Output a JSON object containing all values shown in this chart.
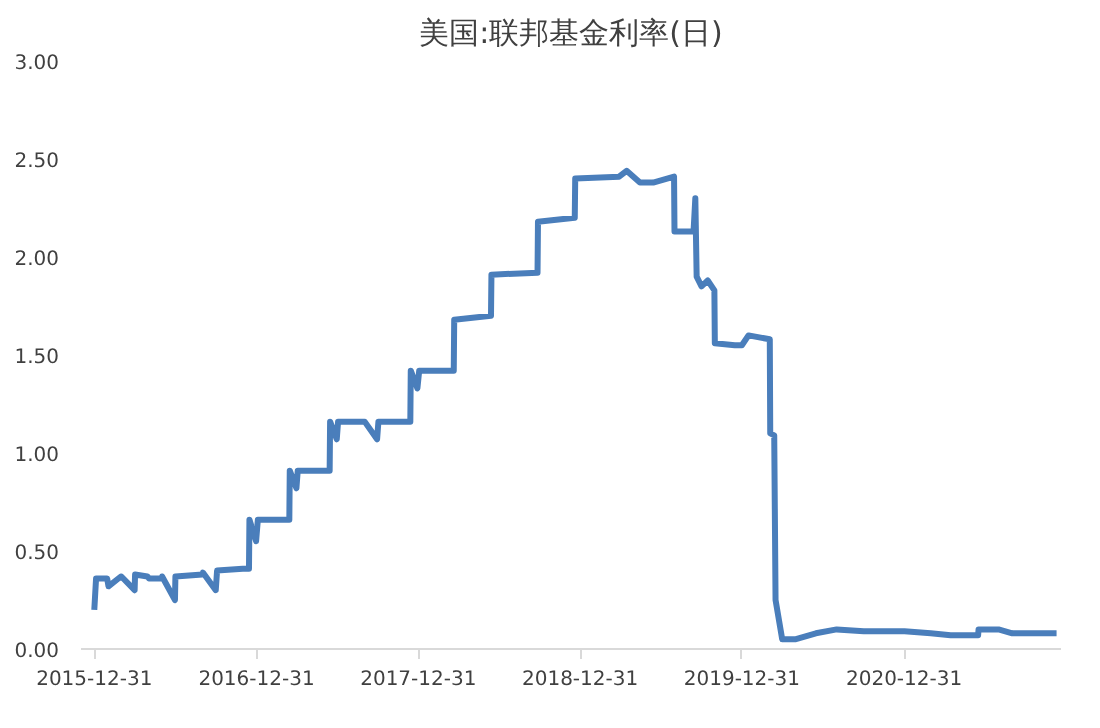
{
  "chart_data": {
    "type": "line",
    "title": "美国:联邦基金利率(日)",
    "x": [
      "2015-12-31",
      "2016-01-04",
      "2016-01-29",
      "2016-02-01",
      "2016-02-29",
      "2016-03-01",
      "2016-03-31",
      "2016-04-01",
      "2016-04-29",
      "2016-05-02",
      "2016-05-31",
      "2016-06-01",
      "2016-06-30",
      "2016-07-01",
      "2016-08-31",
      "2016-09-01",
      "2016-09-30",
      "2016-10-03",
      "2016-11-30",
      "2016-12-01",
      "2016-12-14",
      "2016-12-15",
      "2016-12-30",
      "2017-01-03",
      "2017-02-28",
      "2017-03-01",
      "2017-03-15",
      "2017-03-16",
      "2017-03-31",
      "2017-04-03",
      "2017-05-31",
      "2017-06-01",
      "2017-06-14",
      "2017-06-15",
      "2017-06-30",
      "2017-07-03",
      "2017-08-31",
      "2017-09-01",
      "2017-09-29",
      "2017-10-02",
      "2017-11-30",
      "2017-12-01",
      "2017-12-13",
      "2017-12-14",
      "2017-12-29",
      "2018-01-02",
      "2018-02-28",
      "2018-03-01",
      "2018-03-21",
      "2018-03-22",
      "2018-06-13",
      "2018-06-14",
      "2018-09-26",
      "2018-09-27",
      "2018-12-19",
      "2018-12-20",
      "2019-03-29",
      "2019-04-15",
      "2019-05-15",
      "2019-06-14",
      "2019-07-31",
      "2019-08-01",
      "2019-09-13",
      "2019-09-17",
      "2019-09-20",
      "2019-10-01",
      "2019-10-15",
      "2019-10-30",
      "2019-10-31",
      "2019-12-15",
      "2019-12-31",
      "2020-01-15",
      "2020-03-03",
      "2020-03-04",
      "2020-03-13",
      "2020-03-16",
      "2020-03-31",
      "2020-05-01",
      "2020-06-15",
      "2020-08-01",
      "2020-10-01",
      "2021-01-01",
      "2021-03-01",
      "2021-04-15",
      "2021-06-16",
      "2021-06-17",
      "2021-08-01",
      "2021-09-01",
      "2021-10-15",
      "2021-12-10"
    ],
    "series": [
      {
        "color": "#4a7ebb",
        "values": [
          0.2,
          0.36,
          0.36,
          0.32,
          0.37,
          0.37,
          0.3,
          0.38,
          0.37,
          0.36,
          0.36,
          0.37,
          0.25,
          0.37,
          0.38,
          0.39,
          0.3,
          0.4,
          0.41,
          0.41,
          0.41,
          0.66,
          0.55,
          0.66,
          0.66,
          0.66,
          0.66,
          0.91,
          0.82,
          0.91,
          0.91,
          0.91,
          0.91,
          1.16,
          1.07,
          1.16,
          1.16,
          1.16,
          1.07,
          1.16,
          1.16,
          1.16,
          1.16,
          1.42,
          1.33,
          1.42,
          1.42,
          1.42,
          1.42,
          1.68,
          1.7,
          1.91,
          1.92,
          2.18,
          2.2,
          2.4,
          2.41,
          2.44,
          2.38,
          2.38,
          2.41,
          2.13,
          2.13,
          2.3,
          1.9,
          1.85,
          1.88,
          1.83,
          1.56,
          1.55,
          1.55,
          1.6,
          1.58,
          1.1,
          1.09,
          0.25,
          0.05,
          0.05,
          0.08,
          0.1,
          0.09,
          0.09,
          0.08,
          0.07,
          0.07,
          0.1,
          0.1,
          0.08,
          0.08,
          0.08
        ]
      }
    ],
    "xlim": [
      "2015-12-01",
      "2021-12-20"
    ],
    "xticks": [
      "2015-12-31",
      "2016-12-31",
      "2017-12-31",
      "2018-12-31",
      "2019-12-31",
      "2020-12-31"
    ],
    "ylim": [
      0,
      3
    ],
    "yticks": [
      {
        "value": 0,
        "label": "0.00"
      },
      {
        "value": 0.5,
        "label": "0.50"
      },
      {
        "value": 1,
        "label": "1.00"
      },
      {
        "value": 1.5,
        "label": "1.50"
      },
      {
        "value": 2,
        "label": "2.00"
      },
      {
        "value": 2.5,
        "label": "2.50"
      },
      {
        "value": 3,
        "label": "3.00"
      }
    ],
    "grid": false,
    "marker": "none",
    "line_style": "solid"
  }
}
